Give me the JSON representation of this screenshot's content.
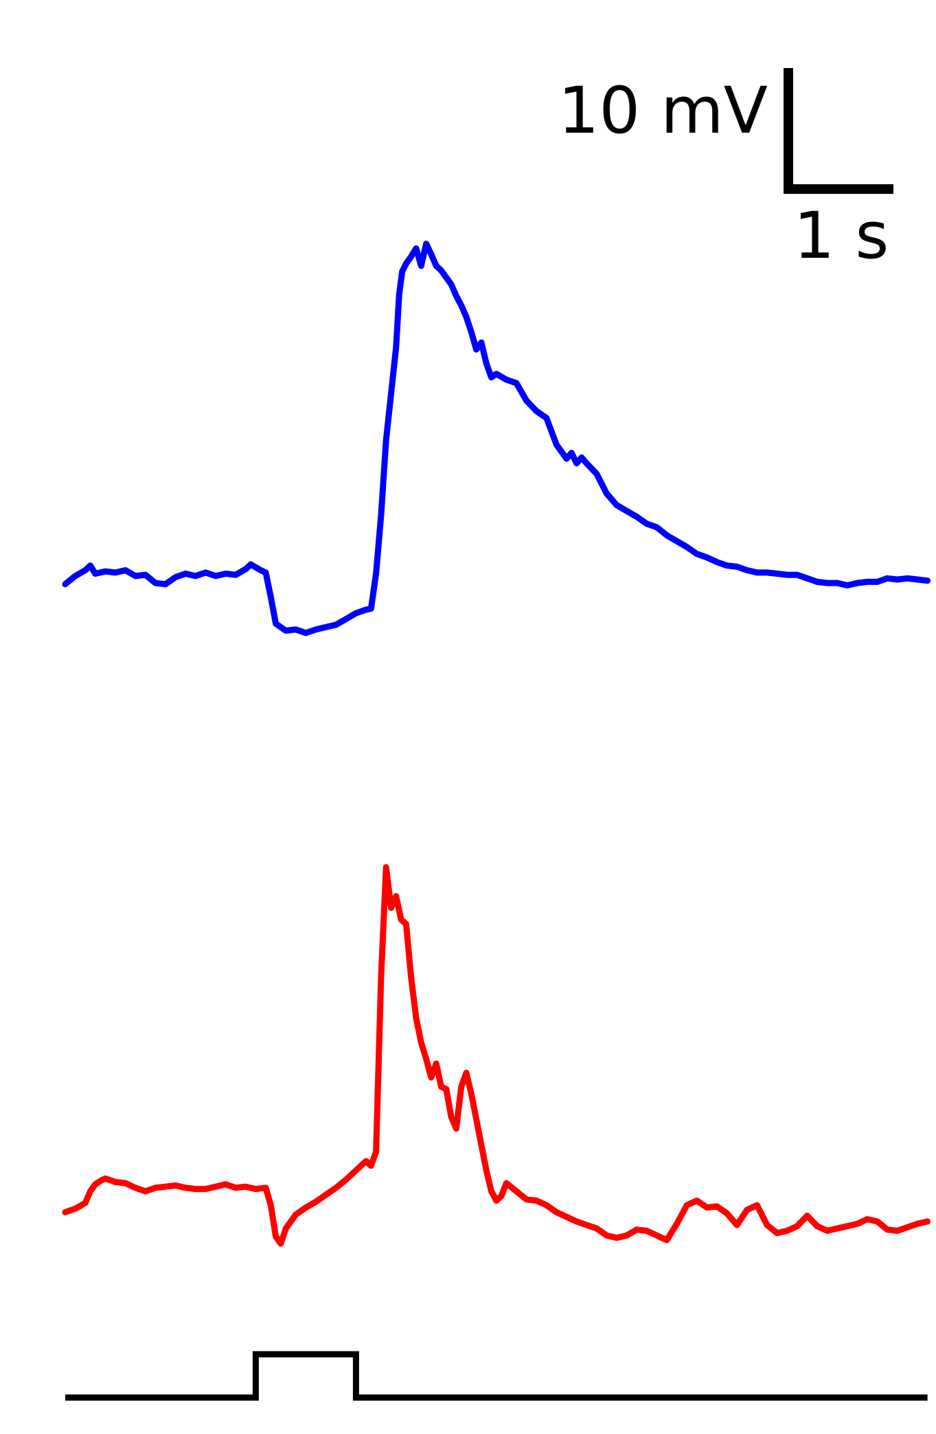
{
  "chart_data": {
    "type": "line",
    "title": "",
    "xlabel": "",
    "ylabel": "",
    "grid": false,
    "legend": "none",
    "scale_bar": {
      "y_value": 10,
      "y_label": "10 mV",
      "x_value": 1,
      "x_label": "1 s"
    },
    "x_units": "s",
    "y_units": "mV",
    "xlim": [
      0,
      8.6
    ],
    "series": [
      {
        "color": "#0000ff",
        "baseline_mv": 0,
        "points": [
          [
            0.0,
            -0.4
          ],
          [
            0.1,
            0.3
          ],
          [
            0.2,
            0.8
          ],
          [
            0.25,
            1.2
          ],
          [
            0.3,
            0.5
          ],
          [
            0.4,
            0.7
          ],
          [
            0.5,
            0.6
          ],
          [
            0.6,
            0.8
          ],
          [
            0.7,
            0.3
          ],
          [
            0.8,
            0.4
          ],
          [
            0.9,
            -0.3
          ],
          [
            1.0,
            -0.4
          ],
          [
            1.1,
            0.2
          ],
          [
            1.2,
            0.5
          ],
          [
            1.3,
            0.3
          ],
          [
            1.4,
            0.6
          ],
          [
            1.5,
            0.3
          ],
          [
            1.6,
            0.5
          ],
          [
            1.7,
            0.4
          ],
          [
            1.8,
            0.9
          ],
          [
            1.85,
            1.3
          ],
          [
            1.95,
            0.8
          ],
          [
            2.0,
            0.6
          ],
          [
            2.05,
            -1.5
          ],
          [
            2.1,
            -3.8
          ],
          [
            2.2,
            -4.4
          ],
          [
            2.3,
            -4.3
          ],
          [
            2.4,
            -4.6
          ],
          [
            2.5,
            -4.3
          ],
          [
            2.6,
            -4.1
          ],
          [
            2.7,
            -3.9
          ],
          [
            2.8,
            -3.4
          ],
          [
            2.9,
            -2.9
          ],
          [
            3.0,
            -2.6
          ],
          [
            3.05,
            -2.5
          ],
          [
            3.1,
            0.5
          ],
          [
            3.15,
            5.5
          ],
          [
            3.2,
            12.0
          ],
          [
            3.25,
            16.0
          ],
          [
            3.3,
            20.0
          ],
          [
            3.33,
            24.5
          ],
          [
            3.36,
            26.5
          ],
          [
            3.4,
            27.2
          ],
          [
            3.45,
            27.8
          ],
          [
            3.5,
            28.5
          ],
          [
            3.55,
            27.0
          ],
          [
            3.6,
            28.9
          ],
          [
            3.65,
            28.0
          ],
          [
            3.7,
            27.0
          ],
          [
            3.75,
            26.6
          ],
          [
            3.8,
            26.0
          ],
          [
            3.85,
            25.4
          ],
          [
            3.9,
            24.4
          ],
          [
            3.95,
            23.6
          ],
          [
            4.0,
            22.6
          ],
          [
            4.05,
            21.3
          ],
          [
            4.1,
            19.8
          ],
          [
            4.15,
            20.4
          ],
          [
            4.2,
            18.6
          ],
          [
            4.25,
            17.4
          ],
          [
            4.3,
            17.7
          ],
          [
            4.4,
            17.2
          ],
          [
            4.5,
            16.9
          ],
          [
            4.6,
            15.4
          ],
          [
            4.7,
            14.5
          ],
          [
            4.8,
            13.9
          ],
          [
            4.9,
            11.6
          ],
          [
            5.0,
            10.4
          ],
          [
            5.05,
            10.9
          ],
          [
            5.1,
            10.0
          ],
          [
            5.15,
            10.5
          ],
          [
            5.2,
            10.0
          ],
          [
            5.3,
            9.1
          ],
          [
            5.4,
            7.4
          ],
          [
            5.5,
            6.4
          ],
          [
            5.6,
            5.9
          ],
          [
            5.7,
            5.4
          ],
          [
            5.8,
            4.8
          ],
          [
            5.9,
            4.5
          ],
          [
            6.0,
            3.8
          ],
          [
            6.1,
            3.3
          ],
          [
            6.2,
            2.8
          ],
          [
            6.3,
            2.2
          ],
          [
            6.4,
            1.9
          ],
          [
            6.5,
            1.5
          ],
          [
            6.6,
            1.2
          ],
          [
            6.7,
            1.1
          ],
          [
            6.8,
            0.8
          ],
          [
            6.9,
            0.6
          ],
          [
            7.0,
            0.6
          ],
          [
            7.1,
            0.5
          ],
          [
            7.2,
            0.4
          ],
          [
            7.3,
            0.4
          ],
          [
            7.4,
            0.1
          ],
          [
            7.5,
            -0.2
          ],
          [
            7.6,
            -0.3
          ],
          [
            7.7,
            -0.3
          ],
          [
            7.8,
            -0.5
          ],
          [
            7.9,
            -0.3
          ],
          [
            8.0,
            -0.2
          ],
          [
            8.1,
            -0.2
          ],
          [
            8.2,
            0.1
          ],
          [
            8.3,
            0.0
          ],
          [
            8.4,
            0.1
          ],
          [
            8.5,
            0.0
          ],
          [
            8.6,
            -0.1
          ]
        ]
      },
      {
        "color": "#ff0000",
        "baseline_mv": 0,
        "points": [
          [
            0.0,
            -0.2
          ],
          [
            0.1,
            0.1
          ],
          [
            0.2,
            0.6
          ],
          [
            0.25,
            1.6
          ],
          [
            0.3,
            2.2
          ],
          [
            0.35,
            2.5
          ],
          [
            0.4,
            2.7
          ],
          [
            0.5,
            2.4
          ],
          [
            0.6,
            2.3
          ],
          [
            0.7,
            1.9
          ],
          [
            0.8,
            1.6
          ],
          [
            0.9,
            1.9
          ],
          [
            1.0,
            2.0
          ],
          [
            1.1,
            2.1
          ],
          [
            1.2,
            1.9
          ],
          [
            1.3,
            1.8
          ],
          [
            1.4,
            1.8
          ],
          [
            1.5,
            2.0
          ],
          [
            1.6,
            2.2
          ],
          [
            1.7,
            1.9
          ],
          [
            1.8,
            2.0
          ],
          [
            1.9,
            1.8
          ],
          [
            2.0,
            1.9
          ],
          [
            2.05,
            0.4
          ],
          [
            2.1,
            -2.3
          ],
          [
            2.15,
            -2.9
          ],
          [
            2.2,
            -1.6
          ],
          [
            2.3,
            -0.4
          ],
          [
            2.4,
            0.2
          ],
          [
            2.5,
            0.7
          ],
          [
            2.6,
            1.3
          ],
          [
            2.7,
            1.9
          ],
          [
            2.8,
            2.6
          ],
          [
            2.9,
            3.4
          ],
          [
            3.0,
            4.2
          ],
          [
            3.05,
            3.8
          ],
          [
            3.1,
            5.0
          ],
          [
            3.15,
            20.0
          ],
          [
            3.2,
            29.5
          ],
          [
            3.25,
            26.0
          ],
          [
            3.3,
            27.0
          ],
          [
            3.35,
            25.0
          ],
          [
            3.4,
            24.6
          ],
          [
            3.45,
            20.0
          ],
          [
            3.5,
            16.5
          ],
          [
            3.55,
            14.4
          ],
          [
            3.6,
            13.0
          ],
          [
            3.65,
            11.4
          ],
          [
            3.7,
            12.6
          ],
          [
            3.75,
            10.6
          ],
          [
            3.8,
            10.4
          ],
          [
            3.85,
            8.0
          ],
          [
            3.9,
            7.0
          ],
          [
            3.95,
            10.6
          ],
          [
            4.0,
            11.8
          ],
          [
            4.05,
            10.0
          ],
          [
            4.1,
            7.8
          ],
          [
            4.15,
            5.6
          ],
          [
            4.2,
            3.4
          ],
          [
            4.25,
            1.6
          ],
          [
            4.3,
            0.8
          ],
          [
            4.35,
            1.2
          ],
          [
            4.4,
            2.3
          ],
          [
            4.5,
            1.6
          ],
          [
            4.6,
            0.9
          ],
          [
            4.7,
            0.8
          ],
          [
            4.8,
            0.4
          ],
          [
            4.9,
            -0.2
          ],
          [
            5.0,
            -0.6
          ],
          [
            5.1,
            -1.0
          ],
          [
            5.2,
            -1.3
          ],
          [
            5.3,
            -1.6
          ],
          [
            5.4,
            -2.2
          ],
          [
            5.5,
            -2.4
          ],
          [
            5.6,
            -2.2
          ],
          [
            5.7,
            -1.7
          ],
          [
            5.8,
            -1.8
          ],
          [
            5.9,
            -2.2
          ],
          [
            6.0,
            -2.6
          ],
          [
            6.1,
            -1.2
          ],
          [
            6.2,
            0.4
          ],
          [
            6.3,
            0.8
          ],
          [
            6.4,
            0.2
          ],
          [
            6.5,
            0.3
          ],
          [
            6.6,
            -0.3
          ],
          [
            6.7,
            -1.3
          ],
          [
            6.8,
            0.0
          ],
          [
            6.9,
            0.4
          ],
          [
            7.0,
            -1.3
          ],
          [
            7.1,
            -2.0
          ],
          [
            7.2,
            -1.8
          ],
          [
            7.3,
            -1.4
          ],
          [
            7.4,
            -0.5
          ],
          [
            7.5,
            -1.4
          ],
          [
            7.6,
            -1.8
          ],
          [
            7.7,
            -1.6
          ],
          [
            7.8,
            -1.4
          ],
          [
            7.9,
            -1.2
          ],
          [
            8.0,
            -0.8
          ],
          [
            8.1,
            -1.0
          ],
          [
            8.2,
            -1.7
          ],
          [
            8.3,
            -1.8
          ],
          [
            8.4,
            -1.5
          ],
          [
            8.5,
            -1.2
          ],
          [
            8.6,
            -1.0
          ]
        ]
      },
      {
        "color": "#000000",
        "stimulus": true,
        "start_s": 1.9,
        "end_s": 2.9,
        "points": [
          [
            0.0,
            0
          ],
          [
            1.9,
            0
          ],
          [
            1.9,
            1
          ],
          [
            2.9,
            1
          ],
          [
            2.9,
            0
          ],
          [
            8.6,
            0
          ]
        ]
      }
    ]
  }
}
